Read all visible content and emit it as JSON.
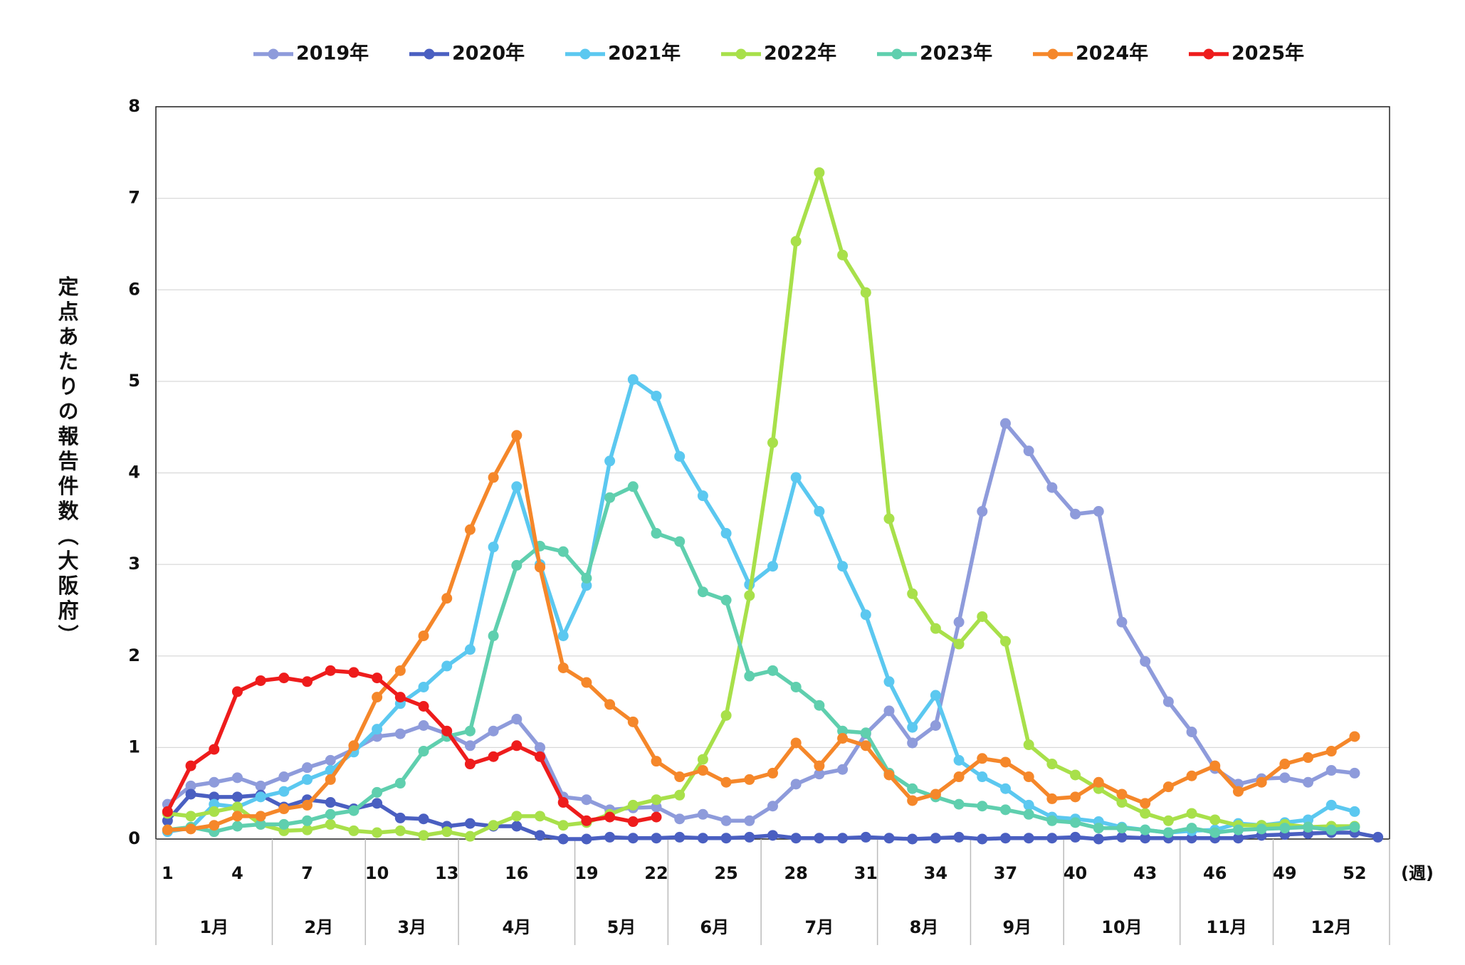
{
  "chart_data": {
    "type": "line",
    "y_label": "定点あたりの報告件数（大阪府）",
    "x_label": "(週)",
    "x": [
      1,
      2,
      3,
      4,
      5,
      6,
      7,
      8,
      9,
      10,
      11,
      12,
      13,
      14,
      15,
      16,
      17,
      18,
      19,
      20,
      21,
      22,
      23,
      24,
      25,
      26,
      27,
      28,
      29,
      30,
      31,
      32,
      33,
      34,
      35,
      36,
      37,
      38,
      39,
      40,
      41,
      42,
      43,
      44,
      45,
      46,
      47,
      48,
      49,
      50,
      51,
      52,
      53
    ],
    "xlim": [
      0.5,
      53.5
    ],
    "xticks": [
      1,
      4,
      7,
      10,
      13,
      16,
      19,
      22,
      25,
      28,
      31,
      34,
      37,
      40,
      43,
      46,
      49,
      52
    ],
    "ylim": [
      0,
      8
    ],
    "yticks": [
      0,
      1,
      2,
      3,
      4,
      5,
      6,
      7,
      8
    ],
    "grid": true,
    "legend": "top",
    "month_groups": [
      {
        "label": "1月",
        "weeks": [
          1,
          5
        ]
      },
      {
        "label": "2月",
        "weeks": [
          6,
          9
        ]
      },
      {
        "label": "3月",
        "weeks": [
          10,
          13
        ]
      },
      {
        "label": "4月",
        "weeks": [
          14,
          18
        ]
      },
      {
        "label": "5月",
        "weeks": [
          19,
          22
        ]
      },
      {
        "label": "6月",
        "weeks": [
          23,
          26
        ]
      },
      {
        "label": "7月",
        "weeks": [
          27,
          31
        ]
      },
      {
        "label": "8月",
        "weeks": [
          32,
          35
        ]
      },
      {
        "label": "9月",
        "weeks": [
          36,
          39
        ]
      },
      {
        "label": "10月",
        "weeks": [
          40,
          44
        ]
      },
      {
        "label": "11月",
        "weeks": [
          45,
          48
        ]
      },
      {
        "label": "12月",
        "weeks": [
          49,
          53
        ]
      }
    ],
    "series": [
      {
        "name": "2019年",
        "color": "#8e9bdb",
        "values": [
          0.38,
          0.58,
          0.62,
          0.67,
          0.58,
          0.68,
          0.78,
          0.86,
          0.98,
          1.12,
          1.15,
          1.24,
          1.15,
          1.02,
          1.18,
          1.31,
          1.0,
          0.46,
          0.43,
          0.32,
          0.34,
          0.35,
          0.22,
          0.27,
          0.2,
          0.2,
          0.36,
          0.6,
          0.71,
          0.76,
          1.15,
          1.4,
          1.05,
          1.24,
          2.37,
          3.58,
          4.54,
          4.24,
          3.84,
          3.55,
          3.58,
          2.37,
          1.94,
          1.5,
          1.17,
          0.77,
          0.6,
          0.66,
          0.67,
          0.62,
          0.75,
          0.72,
          null
        ]
      },
      {
        "name": "2020年",
        "color": "#4a5fc1",
        "values": [
          0.2,
          0.49,
          0.46,
          0.46,
          0.48,
          0.35,
          0.43,
          0.4,
          0.33,
          0.39,
          0.23,
          0.22,
          0.14,
          0.17,
          0.14,
          0.14,
          0.04,
          0.0,
          0.0,
          0.02,
          0.01,
          0.01,
          0.02,
          0.01,
          0.01,
          0.02,
          0.04,
          0.01,
          0.01,
          0.01,
          0.02,
          0.01,
          0.0,
          0.01,
          0.02,
          0.0,
          0.01,
          0.01,
          0.01,
          0.02,
          0.0,
          0.02,
          0.01,
          0.01,
          0.01,
          0.01,
          0.01,
          0.04,
          0.05,
          0.06,
          0.07,
          0.07,
          0.02
        ]
      },
      {
        "name": "2021年",
        "color": "#5bc8f0",
        "values": [
          0.08,
          0.12,
          0.38,
          0.35,
          0.46,
          0.52,
          0.65,
          0.75,
          0.95,
          1.2,
          1.48,
          1.66,
          1.89,
          2.07,
          3.19,
          3.85,
          3.0,
          2.22,
          2.77,
          4.13,
          5.02,
          4.84,
          4.18,
          3.75,
          3.34,
          2.78,
          2.98,
          3.95,
          3.58,
          2.98,
          2.45,
          1.72,
          1.22,
          1.57,
          0.86,
          0.68,
          0.55,
          0.37,
          0.24,
          0.22,
          0.19,
          0.13,
          0.1,
          0.07,
          0.09,
          0.1,
          0.17,
          0.15,
          0.18,
          0.21,
          0.37,
          0.3,
          null
        ]
      },
      {
        "name": "2022年",
        "color": "#a8e04a",
        "values": [
          0.28,
          0.25,
          0.3,
          0.35,
          0.16,
          0.09,
          0.1,
          0.16,
          0.09,
          0.07,
          0.09,
          0.04,
          0.08,
          0.03,
          0.15,
          0.25,
          0.25,
          0.15,
          0.18,
          0.27,
          0.37,
          0.43,
          0.48,
          0.87,
          1.35,
          2.66,
          4.33,
          6.53,
          7.28,
          6.38,
          5.97,
          3.5,
          2.68,
          2.3,
          2.13,
          2.43,
          2.16,
          1.03,
          0.82,
          0.7,
          0.55,
          0.4,
          0.28,
          0.2,
          0.28,
          0.21,
          0.15,
          0.15,
          0.16,
          0.13,
          0.14,
          0.14,
          null
        ]
      },
      {
        "name": "2023年",
        "color": "#5fcfae",
        "values": [
          0.1,
          0.13,
          0.08,
          0.14,
          0.16,
          0.16,
          0.2,
          0.27,
          0.31,
          0.51,
          0.61,
          0.96,
          1.12,
          1.18,
          2.22,
          2.99,
          3.2,
          3.14,
          2.85,
          3.73,
          3.85,
          3.34,
          3.25,
          2.7,
          2.61,
          1.78,
          1.84,
          1.66,
          1.46,
          1.18,
          1.16,
          0.72,
          0.55,
          0.46,
          0.38,
          0.36,
          0.32,
          0.27,
          0.2,
          0.18,
          0.12,
          0.12,
          0.1,
          0.07,
          0.12,
          0.07,
          0.1,
          0.11,
          0.12,
          0.13,
          0.1,
          0.13,
          null
        ]
      },
      {
        "name": "2024年",
        "color": "#f5872a",
        "values": [
          0.1,
          0.11,
          0.15,
          0.25,
          0.25,
          0.33,
          0.37,
          0.65,
          1.02,
          1.55,
          1.84,
          2.22,
          2.63,
          3.38,
          3.95,
          4.41,
          2.97,
          1.87,
          1.71,
          1.47,
          1.28,
          0.85,
          0.68,
          0.75,
          0.62,
          0.65,
          0.72,
          1.05,
          0.8,
          1.1,
          1.02,
          0.7,
          0.42,
          0.49,
          0.68,
          0.88,
          0.84,
          0.68,
          0.44,
          0.46,
          0.62,
          0.49,
          0.39,
          0.57,
          0.69,
          0.8,
          0.52,
          0.62,
          0.82,
          0.89,
          0.96,
          1.12,
          null
        ]
      },
      {
        "name": "2025年",
        "color": "#ee1c1c",
        "values": [
          0.3,
          0.8,
          0.98,
          1.61,
          1.73,
          1.76,
          1.72,
          1.84,
          1.82,
          1.76,
          1.55,
          1.45,
          1.18,
          0.82,
          0.9,
          1.02,
          0.9,
          0.4,
          0.2,
          0.24,
          0.19,
          0.24,
          null,
          null,
          null,
          null,
          null,
          null,
          null,
          null,
          null,
          null,
          null,
          null,
          null,
          null,
          null,
          null,
          null,
          null,
          null,
          null,
          null,
          null,
          null,
          null,
          null,
          null,
          null,
          null,
          null,
          null,
          null
        ]
      }
    ]
  }
}
